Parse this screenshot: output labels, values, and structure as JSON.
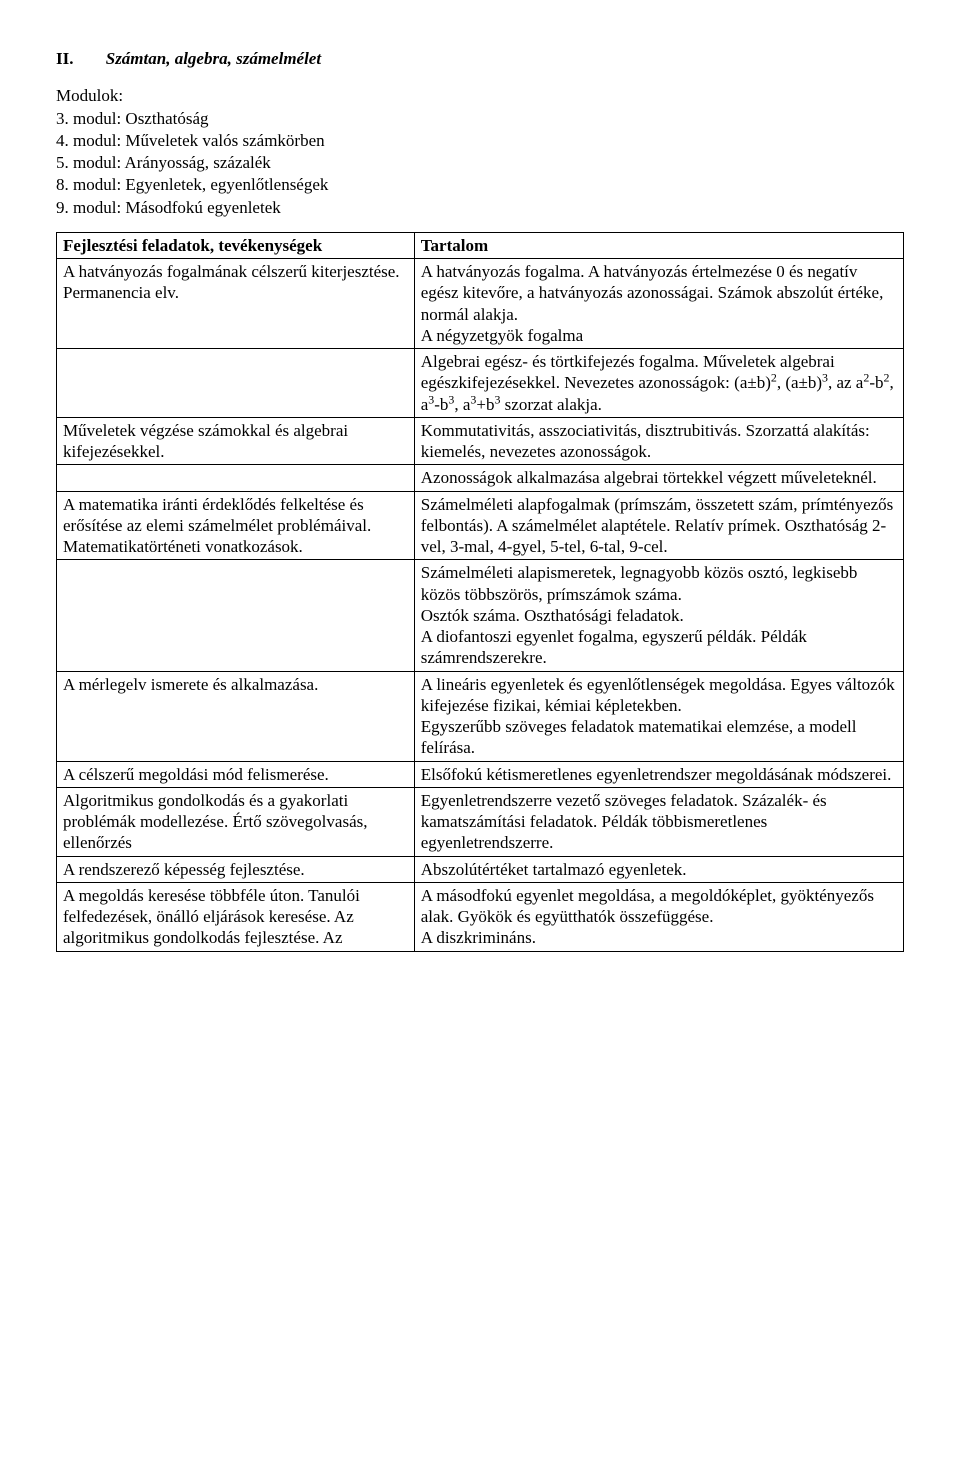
{
  "heading": {
    "roman": "II.",
    "title": "Számtan, algebra, számelmélet"
  },
  "modules": {
    "label": "Modulok:",
    "items": [
      "3. modul: Oszthatóság",
      "4. modul: Műveletek valós számkörben",
      "5. modul: Arányosság, százalék",
      "8. modul: Egyenletek, egyenlőtlenségek",
      "9. modul: Másodfokú egyenletek"
    ]
  },
  "table": {
    "header": {
      "left": "Fejlesztési feladatok, tevékenységek",
      "right": "Tartalom"
    },
    "rows": [
      {
        "left": "A hatványozás fogalmának célszerű kiterjesztése.\nPermanencia elv.",
        "right": "A hatványozás fogalma. A hatványozás értelmezése 0 és negatív egész kitevőre, a hatványozás azonosságai. Számok abszolút értéke, normál alakja.\nA négyzetgyök fogalma"
      },
      {
        "left": "",
        "rightHtml": "Algebrai egész- és törtkifejezés fogalma. Műveletek algebrai egészkifejezésekkel. Nevezetes azonosságok: (a±b)<sup>2</sup>, (a±b)<sup>3</sup>, az a<sup>2</sup>-b<sup>2</sup>, a<sup>3</sup>-b<sup>3</sup>, a<sup>3</sup>+b<sup>3</sup> szorzat alakja."
      },
      {
        "left": "Műveletek végzése számokkal és algebrai kifejezésekkel.",
        "right": "Kommutativitás, asszociativitás, disztrubitivás. Szorzattá alakítás: kiemelés, nevezetes azonosságok."
      },
      {
        "left": "",
        "right": "Azonosságok alkalmazása algebrai törtekkel végzett műveleteknél."
      },
      {
        "left": "A matematika iránti érdeklődés felkeltése és erősítése az elemi számelmélet problémáival. Matematikatörténeti vonatkozások.",
        "right": "Számelméleti alapfogalmak (prímszám, összetett szám, prímtényezős felbontás). A számelmélet alaptétele. Relatív prímek. Oszthatóság 2-vel, 3-mal, 4-gyel, 5-tel, 6-tal, 9-cel."
      },
      {
        "left": "",
        "right": "Számelméleti alapismeretek, legnagyobb közös osztó, legkisebb közös többszörös, prímszámok száma.\nOsztók száma. Oszthatósági feladatok.\nA diofantoszi egyenlet fogalma, egyszerű példák. Példák számrendszerekre."
      },
      {
        "left": "A mérlegelv ismerete és alkalmazása.",
        "right": "A lineáris egyenletek és egyenlőtlenségek megoldása. Egyes változók kifejezése fizikai, kémiai képletekben.\nEgyszerűbb szöveges feladatok matematikai elemzése, a modell felírása."
      },
      {
        "left": "A célszerű megoldási mód felismerése.",
        "right": "Elsőfokú kétismeretlenes egyenletrendszer megoldásának módszerei."
      },
      {
        "left": "Algoritmikus gondolkodás és a gyakorlati problémák modellezése. Értő szövegolvasás, ellenőrzés",
        "right": "Egyenletrendszerre vezető szöveges feladatok. Százalék- és kamatszámítási feladatok. Példák többismeretlenes egyenletrendszerre."
      },
      {
        "left": "A rendszerező képesség fejlesztése.",
        "right": "Abszolútértéket tartalmazó egyenletek."
      },
      {
        "left": "A megoldás keresése többféle úton. Tanulói felfedezések, önálló eljárások keresése. Az algoritmikus gondolkodás fejlesztése. Az",
        "right": "A másodfokú egyenlet megoldása, a megoldóképlet, gyöktényezős alak. Gyökök és együtthatók összefüggése.\nA diszkrimináns."
      }
    ]
  }
}
